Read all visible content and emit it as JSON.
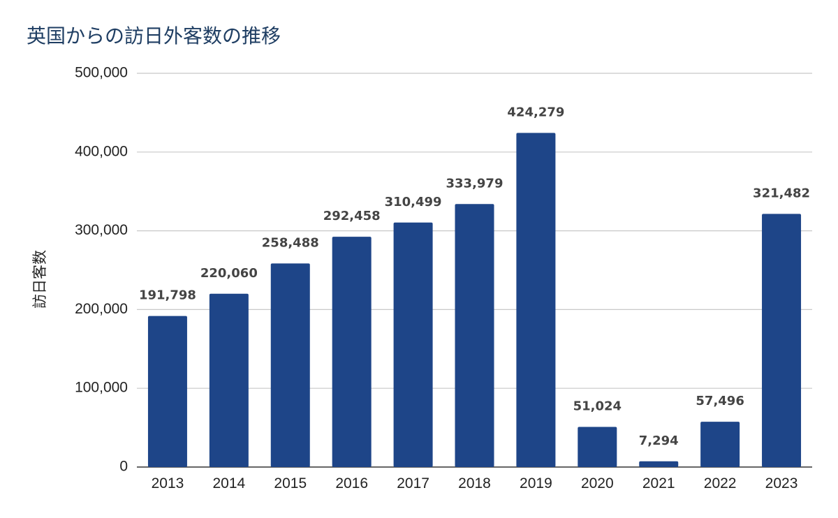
{
  "chart_data": {
    "type": "bar",
    "title": "英国からの訪日外客数の推移",
    "ylabel": "訪日客数",
    "xlabel": "",
    "categories": [
      "2013",
      "2014",
      "2015",
      "2016",
      "2017",
      "2018",
      "2019",
      "2020",
      "2021",
      "2022",
      "2023"
    ],
    "values": [
      191798,
      220060,
      258488,
      292458,
      310499,
      333979,
      424279,
      51024,
      7294,
      57496,
      321482
    ],
    "value_labels": [
      "191,798",
      "220,060",
      "258,488",
      "292,458",
      "310,499",
      "333,979",
      "424,279",
      "51,024",
      "7,294",
      "57,496",
      "321,482"
    ],
    "ylim": [
      0,
      500000
    ],
    "yticks": [
      0,
      100000,
      200000,
      300000,
      400000,
      500000
    ],
    "ytick_labels": [
      "0",
      "100,000",
      "200,000",
      "300,000",
      "400,000",
      "500,000"
    ],
    "grid": true,
    "legend": "none",
    "bar_color": "#1e4588"
  }
}
